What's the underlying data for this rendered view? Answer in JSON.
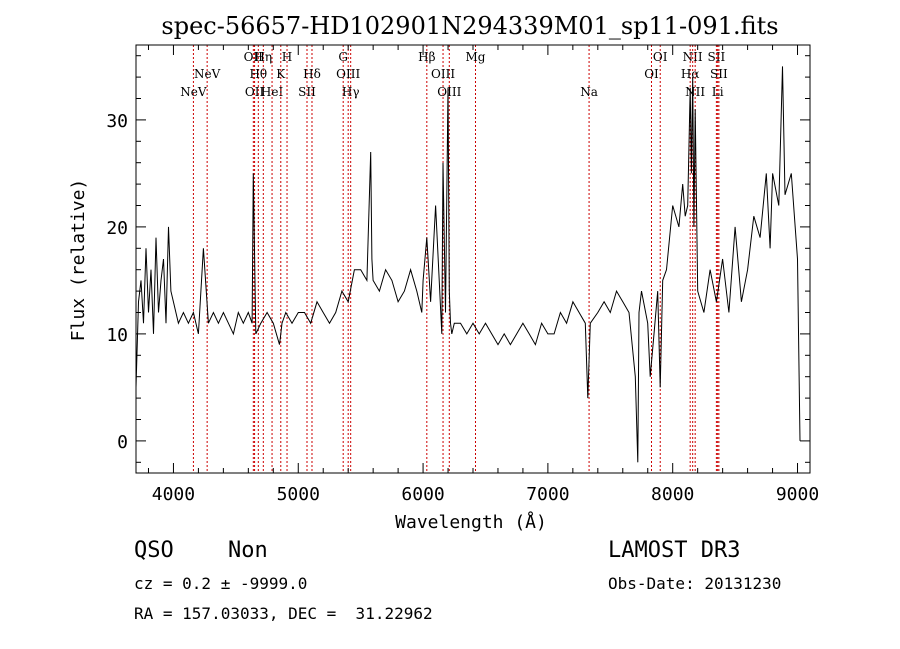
{
  "chart_data": {
    "type": "line",
    "title": "spec-56657-HD102901N294339M01_sp11-091.fits",
    "xlabel": "Wavelength (Å)",
    "ylabel": "Flux (relative)",
    "xlim": [
      3700,
      9100
    ],
    "ylim": [
      -3,
      37
    ],
    "xticks": [
      4000,
      5000,
      6000,
      7000,
      8000,
      9000
    ],
    "yticks": [
      0,
      10,
      20,
      30
    ],
    "line_color": "#000000",
    "marker_color": "#cc0000",
    "series": [
      {
        "name": "spectrum",
        "x": [
          3700,
          3720,
          3740,
          3760,
          3780,
          3800,
          3820,
          3840,
          3860,
          3880,
          3900,
          3920,
          3940,
          3960,
          3980,
          4000,
          4040,
          4080,
          4120,
          4160,
          4200,
          4240,
          4280,
          4320,
          4360,
          4400,
          4440,
          4480,
          4520,
          4560,
          4600,
          4630,
          4640,
          4660,
          4700,
          4750,
          4800,
          4850,
          4860,
          4870,
          4900,
          4950,
          5000,
          5050,
          5100,
          5150,
          5200,
          5250,
          5300,
          5350,
          5400,
          5450,
          5500,
          5550,
          5580,
          5590,
          5600,
          5650,
          5700,
          5750,
          5800,
          5850,
          5900,
          5950,
          5990,
          6000,
          6030,
          6060,
          6100,
          6150,
          6160,
          6180,
          6200,
          6210,
          6220,
          6230,
          6250,
          6300,
          6350,
          6400,
          6450,
          6500,
          6550,
          6600,
          6650,
          6700,
          6750,
          6800,
          6850,
          6900,
          6950,
          7000,
          7050,
          7100,
          7150,
          7200,
          7250,
          7300,
          7320,
          7340,
          7400,
          7450,
          7500,
          7550,
          7600,
          7650,
          7700,
          7720,
          7730,
          7750,
          7800,
          7820,
          7850,
          7880,
          7900,
          7920,
          7950,
          8000,
          8050,
          8080,
          8100,
          8120,
          8140,
          8150,
          8160,
          8170,
          8180,
          8200,
          8250,
          8300,
          8350,
          8400,
          8450,
          8500,
          8550,
          8600,
          8650,
          8700,
          8750,
          8780,
          8800,
          8850,
          8880,
          8900,
          8950,
          9000,
          9020
        ],
        "y": [
          5,
          13,
          15,
          11,
          18,
          12,
          16,
          10,
          19,
          12,
          15,
          17,
          11,
          20,
          14,
          13,
          11,
          12,
          11,
          12,
          10,
          18,
          11,
          12,
          11,
          12,
          11,
          10,
          12,
          11,
          12,
          11,
          25,
          10,
          11,
          12,
          11,
          9,
          10,
          11,
          12,
          11,
          12,
          12,
          11,
          13,
          12,
          11,
          12,
          14,
          13,
          16,
          16,
          15,
          27,
          17,
          15,
          14,
          16,
          15,
          13,
          14,
          16,
          14,
          12,
          15,
          19,
          13,
          22,
          10,
          26,
          12,
          33,
          14,
          11,
          10,
          11,
          11,
          10,
          11,
          10,
          11,
          10,
          9,
          10,
          9,
          10,
          11,
          10,
          9,
          11,
          10,
          10,
          12,
          11,
          13,
          12,
          11,
          4,
          11,
          12,
          13,
          12,
          14,
          13,
          12,
          6,
          -2,
          12,
          14,
          11,
          6,
          10,
          14,
          5,
          15,
          16,
          22,
          20,
          24,
          21,
          22,
          33,
          25,
          34,
          20,
          31,
          14,
          12,
          16,
          13,
          17,
          12,
          20,
          13,
          16,
          21,
          19,
          25,
          18,
          25,
          22,
          35,
          23,
          25,
          17,
          0
        ]
      }
    ],
    "lines": [
      {
        "name": "NeV",
        "wl": 4160,
        "row": 3
      },
      {
        "name": "NeV",
        "wl": 4270,
        "row": 2
      },
      {
        "name": "OII",
        "wl": 4640,
        "row": 1
      },
      {
        "name": "OII",
        "wl": 4650,
        "row": 3
      },
      {
        "name": "Hη",
        "wl": 4720,
        "row": 1
      },
      {
        "name": "Hθ",
        "wl": 4680,
        "row": 2
      },
      {
        "name": "HeI",
        "wl": 4790,
        "row": 3
      },
      {
        "name": "H",
        "wl": 4910,
        "row": 1
      },
      {
        "name": "K",
        "wl": 4860,
        "row": 2
      },
      {
        "name": "SII",
        "wl": 5070,
        "row": 3
      },
      {
        "name": "Hδ",
        "wl": 5110,
        "row": 2
      },
      {
        "name": "G",
        "wl": 5360,
        "row": 1
      },
      {
        "name": "OIII",
        "wl": 5400,
        "row": 2
      },
      {
        "name": "Hγ",
        "wl": 5420,
        "row": 3
      },
      {
        "name": "Hβ",
        "wl": 6030,
        "row": 1
      },
      {
        "name": "OIII",
        "wl": 6160,
        "row": 2
      },
      {
        "name": "OIII",
        "wl": 6210,
        "row": 3
      },
      {
        "name": "Mg",
        "wl": 6420,
        "row": 1
      },
      {
        "name": "Na",
        "wl": 7330,
        "row": 3
      },
      {
        "name": "OI",
        "wl": 7900,
        "row": 1
      },
      {
        "name": "OI",
        "wl": 7830,
        "row": 2
      },
      {
        "name": "NII",
        "wl": 8160,
        "row": 1
      },
      {
        "name": "Hα",
        "wl": 8140,
        "row": 2
      },
      {
        "name": "NII",
        "wl": 8180,
        "row": 3
      },
      {
        "name": "SII",
        "wl": 8350,
        "row": 1
      },
      {
        "name": "SII",
        "wl": 8370,
        "row": 2
      },
      {
        "name": "Li",
        "wl": 8360,
        "row": 3
      }
    ]
  },
  "footer": {
    "class": "QSO",
    "subclass": "Non",
    "release": "LAMOST DR3",
    "cz": "cz = 0.2 ± -9999.0",
    "obs_date": "Obs-Date: 20131230",
    "coords": "RA = 157.03033, DEC =  31.22962"
  }
}
